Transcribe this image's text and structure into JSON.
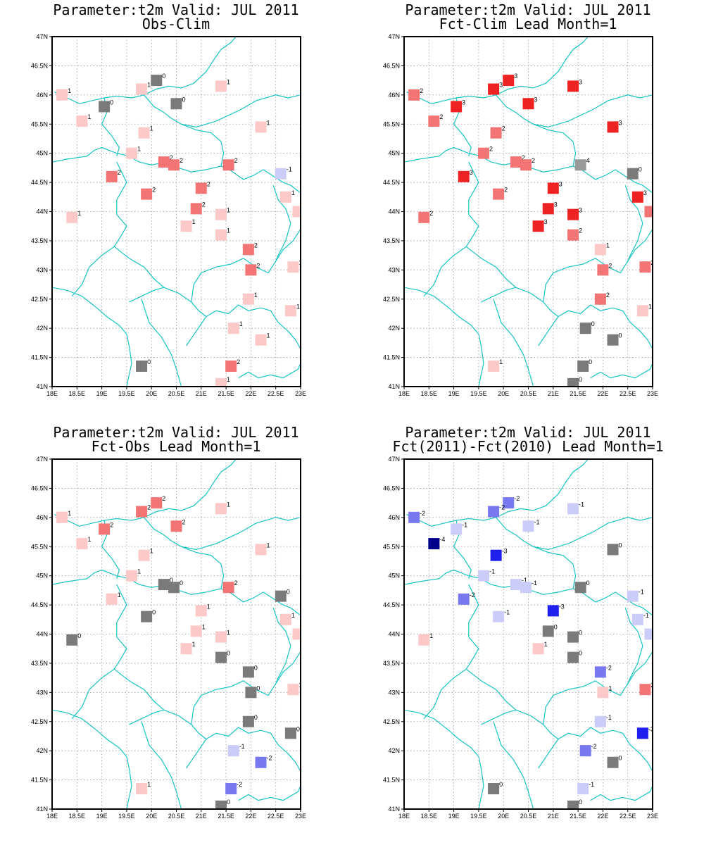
{
  "lon_ticks": [
    "18E",
    "18.5E",
    "19E",
    "19.5E",
    "20E",
    "20.5E",
    "21E",
    "21.5E",
    "22E",
    "22.5E",
    "23E"
  ],
  "lat_ticks": [
    "41N",
    "41.5N",
    "42N",
    "42.5N",
    "43N",
    "43.5N",
    "44N",
    "44.5N",
    "45N",
    "45.5N",
    "46N",
    "46.5N",
    "47N"
  ],
  "lon_range": [
    18,
    23
  ],
  "lat_range": [
    41,
    47
  ],
  "colors": {
    "-4": "#00008b",
    "-3": "#2020ee",
    "-2": "#7878f0",
    "-1": "#ccccf8",
    "0": "#7a7a7a",
    "1": "#fcc8c8",
    "2": "#f27474",
    "3": "#ee2222",
    "coast": "#19c3c3",
    "grid": "#9a9a9a"
  },
  "panels": [
    {
      "title_line1": "Parameter:t2m Valid: JUL 2011",
      "title_line2": "Obs-Clim",
      "points": [
        {
          "lon": 18.2,
          "lat": 46.0,
          "v": "1"
        },
        {
          "lon": 20.1,
          "lat": 46.25,
          "v": "0"
        },
        {
          "lon": 19.8,
          "lat": 46.1,
          "v": "1"
        },
        {
          "lon": 21.4,
          "lat": 46.15,
          "v": "1"
        },
        {
          "lon": 19.05,
          "lat": 45.8,
          "v": "0"
        },
        {
          "lon": 20.5,
          "lat": 45.85,
          "v": "0"
        },
        {
          "lon": 18.6,
          "lat": 45.55,
          "v": "1"
        },
        {
          "lon": 22.2,
          "lat": 45.45,
          "v": "1"
        },
        {
          "lon": 19.85,
          "lat": 45.35,
          "v": "1"
        },
        {
          "lon": 19.6,
          "lat": 45.0,
          "v": "1"
        },
        {
          "lon": 20.25,
          "lat": 44.85,
          "v": "2"
        },
        {
          "lon": 20.45,
          "lat": 44.8,
          "v": "2"
        },
        {
          "lon": 21.55,
          "lat": 44.8,
          "v": "2"
        },
        {
          "lon": 22.6,
          "lat": 44.65,
          "v": "-1"
        },
        {
          "lon": 19.2,
          "lat": 44.6,
          "v": "2"
        },
        {
          "lon": 21.0,
          "lat": 44.4,
          "v": "2"
        },
        {
          "lon": 19.9,
          "lat": 44.3,
          "v": "2"
        },
        {
          "lon": 22.7,
          "lat": 44.25,
          "v": "1"
        },
        {
          "lon": 20.9,
          "lat": 44.05,
          "v": "2"
        },
        {
          "lon": 22.95,
          "lat": 44.0,
          "v": "1"
        },
        {
          "lon": 21.4,
          "lat": 43.95,
          "v": "1"
        },
        {
          "lon": 18.4,
          "lat": 43.9,
          "v": "1"
        },
        {
          "lon": 20.7,
          "lat": 43.75,
          "v": "1"
        },
        {
          "lon": 21.4,
          "lat": 43.6,
          "v": "1"
        },
        {
          "lon": 21.95,
          "lat": 43.35,
          "v": "2"
        },
        {
          "lon": 22.85,
          "lat": 43.05,
          "v": "1"
        },
        {
          "lon": 22.0,
          "lat": 43.0,
          "v": "2"
        },
        {
          "lon": 21.95,
          "lat": 42.5,
          "v": "1"
        },
        {
          "lon": 22.8,
          "lat": 42.3,
          "v": "1"
        },
        {
          "lon": 21.65,
          "lat": 42.0,
          "v": "1"
        },
        {
          "lon": 22.2,
          "lat": 41.8,
          "v": "1"
        },
        {
          "lon": 19.8,
          "lat": 41.35,
          "v": "0"
        },
        {
          "lon": 21.6,
          "lat": 41.35,
          "v": "2"
        },
        {
          "lon": 21.4,
          "lat": 41.05,
          "v": "1"
        }
      ]
    },
    {
      "title_line1": "Parameter:t2m Valid: JUL 2011",
      "title_line2": "Fct-Clim Lead Month=1",
      "points": [
        {
          "lon": 18.2,
          "lat": 46.0,
          "v": "2"
        },
        {
          "lon": 20.1,
          "lat": 46.25,
          "v": "3"
        },
        {
          "lon": 19.8,
          "lat": 46.1,
          "v": "3"
        },
        {
          "lon": 21.4,
          "lat": 46.15,
          "v": "3"
        },
        {
          "lon": 19.05,
          "lat": 45.8,
          "v": "3"
        },
        {
          "lon": 20.5,
          "lat": 45.85,
          "v": "3"
        },
        {
          "lon": 18.6,
          "lat": 45.55,
          "v": "2"
        },
        {
          "lon": 22.2,
          "lat": 45.45,
          "v": "3"
        },
        {
          "lon": 19.85,
          "lat": 45.35,
          "v": "2"
        },
        {
          "lon": 19.6,
          "lat": 45.0,
          "v": "2"
        },
        {
          "lon": 20.25,
          "lat": 44.85,
          "v": "2"
        },
        {
          "lon": 20.45,
          "lat": 44.8,
          "v": "2"
        },
        {
          "lon": 21.55,
          "lat": 44.8,
          "v": "4"
        },
        {
          "lon": 22.6,
          "lat": 44.65,
          "v": "0"
        },
        {
          "lon": 19.2,
          "lat": 44.6,
          "v": "3"
        },
        {
          "lon": 21.0,
          "lat": 44.4,
          "v": "3"
        },
        {
          "lon": 19.9,
          "lat": 44.3,
          "v": "2"
        },
        {
          "lon": 22.7,
          "lat": 44.25,
          "v": "3"
        },
        {
          "lon": 20.9,
          "lat": 44.05,
          "v": "3"
        },
        {
          "lon": 22.95,
          "lat": 44.0,
          "v": "2"
        },
        {
          "lon": 21.4,
          "lat": 43.95,
          "v": "3"
        },
        {
          "lon": 18.4,
          "lat": 43.9,
          "v": "2"
        },
        {
          "lon": 20.7,
          "lat": 43.75,
          "v": "3"
        },
        {
          "lon": 21.4,
          "lat": 43.6,
          "v": "2"
        },
        {
          "lon": 21.95,
          "lat": 43.35,
          "v": "1"
        },
        {
          "lon": 22.85,
          "lat": 43.05,
          "v": "2"
        },
        {
          "lon": 22.0,
          "lat": 43.0,
          "v": "2"
        },
        {
          "lon": 21.95,
          "lat": 42.5,
          "v": "2"
        },
        {
          "lon": 22.8,
          "lat": 42.3,
          "v": "1"
        },
        {
          "lon": 21.65,
          "lat": 42.0,
          "v": "0"
        },
        {
          "lon": 22.2,
          "lat": 41.8,
          "v": "0"
        },
        {
          "lon": 19.8,
          "lat": 41.35,
          "v": "1"
        },
        {
          "lon": 21.6,
          "lat": 41.35,
          "v": "0"
        },
        {
          "lon": 21.4,
          "lat": 41.05,
          "v": "0"
        }
      ]
    },
    {
      "title_line1": "Parameter:t2m Valid: JUL 2011",
      "title_line2": "Fct-Obs Lead Month=1",
      "points": [
        {
          "lon": 18.2,
          "lat": 46.0,
          "v": "1"
        },
        {
          "lon": 20.1,
          "lat": 46.25,
          "v": "2"
        },
        {
          "lon": 19.8,
          "lat": 46.1,
          "v": "2"
        },
        {
          "lon": 21.4,
          "lat": 46.15,
          "v": "1"
        },
        {
          "lon": 19.05,
          "lat": 45.8,
          "v": "2"
        },
        {
          "lon": 20.5,
          "lat": 45.85,
          "v": "2"
        },
        {
          "lon": 18.6,
          "lat": 45.55,
          "v": "1"
        },
        {
          "lon": 22.2,
          "lat": 45.45,
          "v": "1"
        },
        {
          "lon": 19.85,
          "lat": 45.35,
          "v": "1"
        },
        {
          "lon": 19.6,
          "lat": 45.0,
          "v": "1"
        },
        {
          "lon": 20.25,
          "lat": 44.85,
          "v": "0"
        },
        {
          "lon": 20.45,
          "lat": 44.8,
          "v": "0"
        },
        {
          "lon": 21.55,
          "lat": 44.8,
          "v": "2"
        },
        {
          "lon": 22.6,
          "lat": 44.65,
          "v": "0"
        },
        {
          "lon": 19.2,
          "lat": 44.6,
          "v": "1"
        },
        {
          "lon": 21.0,
          "lat": 44.4,
          "v": "1"
        },
        {
          "lon": 19.9,
          "lat": 44.3,
          "v": "0"
        },
        {
          "lon": 22.7,
          "lat": 44.25,
          "v": "1"
        },
        {
          "lon": 20.9,
          "lat": 44.05,
          "v": "1"
        },
        {
          "lon": 22.95,
          "lat": 44.0,
          "v": "1"
        },
        {
          "lon": 21.4,
          "lat": 43.95,
          "v": "1"
        },
        {
          "lon": 18.4,
          "lat": 43.9,
          "v": "0"
        },
        {
          "lon": 20.7,
          "lat": 43.75,
          "v": "1"
        },
        {
          "lon": 21.4,
          "lat": 43.6,
          "v": "0"
        },
        {
          "lon": 21.95,
          "lat": 43.35,
          "v": "0"
        },
        {
          "lon": 22.85,
          "lat": 43.05,
          "v": "1"
        },
        {
          "lon": 22.0,
          "lat": 43.0,
          "v": "0"
        },
        {
          "lon": 21.95,
          "lat": 42.5,
          "v": "0"
        },
        {
          "lon": 22.8,
          "lat": 42.3,
          "v": "0"
        },
        {
          "lon": 21.65,
          "lat": 42.0,
          "v": "-1"
        },
        {
          "lon": 22.2,
          "lat": 41.8,
          "v": "-2"
        },
        {
          "lon": 19.8,
          "lat": 41.35,
          "v": "1"
        },
        {
          "lon": 21.6,
          "lat": 41.35,
          "v": "-2"
        },
        {
          "lon": 21.4,
          "lat": 41.05,
          "v": "0"
        }
      ]
    },
    {
      "title_line1": "Parameter:t2m Valid: JUL 2011",
      "title_line2": "Fct(2011)-Fct(2010) Lead Month=1",
      "points": [
        {
          "lon": 18.2,
          "lat": 46.0,
          "v": "-2"
        },
        {
          "lon": 20.1,
          "lat": 46.25,
          "v": "-2"
        },
        {
          "lon": 19.8,
          "lat": 46.1,
          "v": "-2"
        },
        {
          "lon": 21.4,
          "lat": 46.15,
          "v": "-1"
        },
        {
          "lon": 19.05,
          "lat": 45.8,
          "v": "-1"
        },
        {
          "lon": 20.5,
          "lat": 45.85,
          "v": "-1"
        },
        {
          "lon": 18.6,
          "lat": 45.55,
          "v": "-4"
        },
        {
          "lon": 22.2,
          "lat": 45.45,
          "v": "0"
        },
        {
          "lon": 19.85,
          "lat": 45.35,
          "v": "-3"
        },
        {
          "lon": 19.6,
          "lat": 45.0,
          "v": "-1"
        },
        {
          "lon": 20.25,
          "lat": 44.85,
          "v": "-1"
        },
        {
          "lon": 20.45,
          "lat": 44.8,
          "v": "-1"
        },
        {
          "lon": 21.55,
          "lat": 44.8,
          "v": "0"
        },
        {
          "lon": 22.6,
          "lat": 44.65,
          "v": "-1"
        },
        {
          "lon": 19.2,
          "lat": 44.6,
          "v": "-2"
        },
        {
          "lon": 21.0,
          "lat": 44.4,
          "v": "-3"
        },
        {
          "lon": 19.9,
          "lat": 44.3,
          "v": "-1"
        },
        {
          "lon": 22.7,
          "lat": 44.25,
          "v": "-1"
        },
        {
          "lon": 20.9,
          "lat": 44.05,
          "v": "0"
        },
        {
          "lon": 22.95,
          "lat": 44.0,
          "v": "-1"
        },
        {
          "lon": 21.4,
          "lat": 43.95,
          "v": "0"
        },
        {
          "lon": 18.4,
          "lat": 43.9,
          "v": "1"
        },
        {
          "lon": 20.7,
          "lat": 43.75,
          "v": "1"
        },
        {
          "lon": 21.4,
          "lat": 43.6,
          "v": "0"
        },
        {
          "lon": 21.95,
          "lat": 43.35,
          "v": "-2"
        },
        {
          "lon": 22.85,
          "lat": 43.05,
          "v": "2"
        },
        {
          "lon": 22.0,
          "lat": 43.0,
          "v": "1"
        },
        {
          "lon": 21.95,
          "lat": 42.5,
          "v": "-1"
        },
        {
          "lon": 22.8,
          "lat": 42.3,
          "v": "-3"
        },
        {
          "lon": 21.65,
          "lat": 42.0,
          "v": "-2"
        },
        {
          "lon": 22.2,
          "lat": 41.8,
          "v": "0"
        },
        {
          "lon": 19.8,
          "lat": 41.35,
          "v": "0"
        },
        {
          "lon": 21.6,
          "lat": 41.35,
          "v": "-1"
        },
        {
          "lon": 21.4,
          "lat": 41.05,
          "v": "0"
        }
      ]
    }
  ]
}
